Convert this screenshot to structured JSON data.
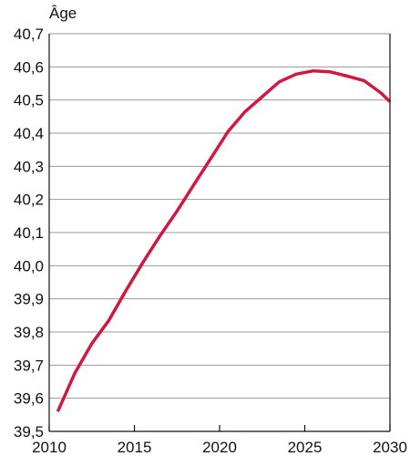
{
  "chart_data": {
    "type": "line",
    "ylabel": "Âge",
    "xlabel": "",
    "xlim": [
      2010,
      2030
    ],
    "ylim": [
      39.5,
      40.7
    ],
    "x_ticks": [
      2010,
      2015,
      2020,
      2025,
      2030
    ],
    "x_tick_labels": [
      "2010",
      "2015",
      "2020",
      "2025",
      "2030"
    ],
    "y_ticks": [
      39.5,
      39.6,
      39.7,
      39.8,
      39.9,
      40.0,
      40.1,
      40.2,
      40.3,
      40.4,
      40.5,
      40.6,
      40.7
    ],
    "y_tick_labels": [
      "39,5",
      "39,6",
      "39,7",
      "39,8",
      "39,9",
      "40,0",
      "40,1",
      "40,2",
      "40,3",
      "40,4",
      "40,5",
      "40,6",
      "40,7"
    ],
    "grid": "horizontal",
    "series": [
      {
        "color": "#d0193f",
        "x": [
          2010.5,
          2011.5,
          2012.5,
          2013.5,
          2014.5,
          2015.5,
          2016.5,
          2017.5,
          2018.5,
          2019.5,
          2020.5,
          2021.5,
          2022.5,
          2023.5,
          2024.5,
          2025.5,
          2026.5,
          2027.5,
          2028.5,
          2029.5,
          2030
        ],
        "y": [
          39.56,
          39.675,
          39.765,
          39.835,
          39.925,
          40.01,
          40.09,
          40.165,
          40.245,
          40.325,
          40.405,
          40.465,
          40.51,
          40.555,
          40.578,
          40.588,
          40.585,
          40.572,
          40.558,
          40.52,
          40.495
        ]
      }
    ]
  }
}
